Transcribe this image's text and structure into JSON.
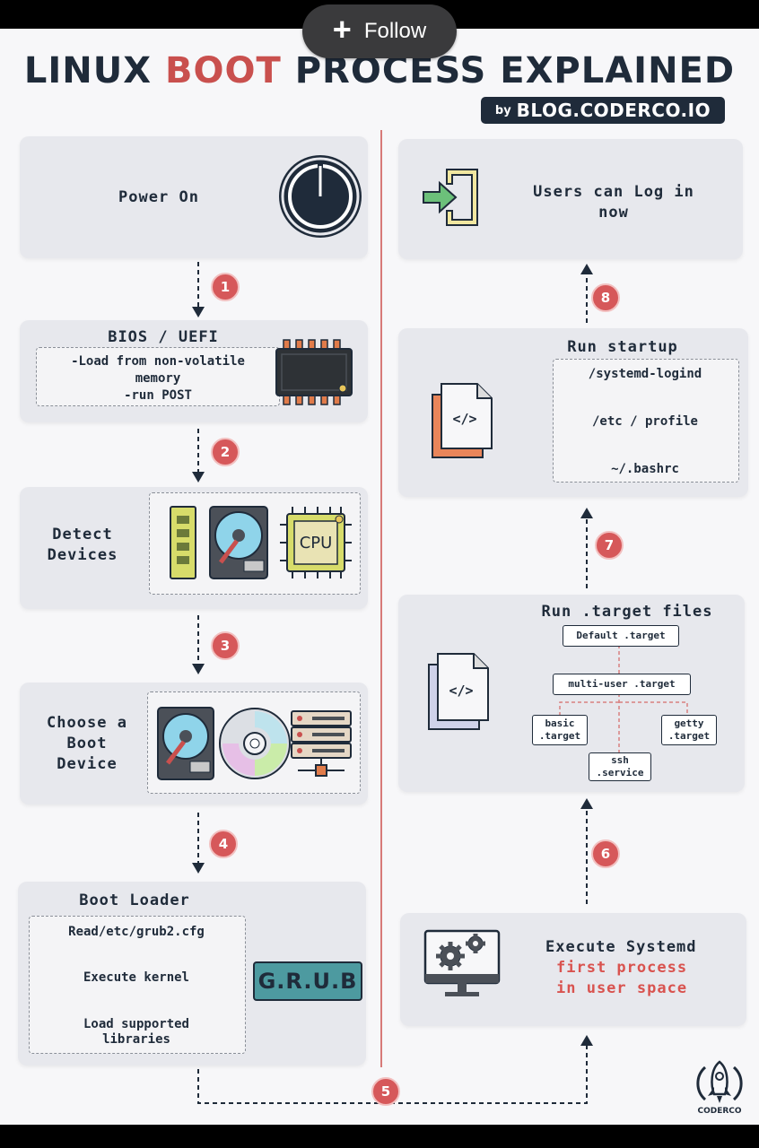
{
  "follow": {
    "label": "Follow"
  },
  "header": {
    "title_part1": "LINUX ",
    "title_highlight": "BOOT",
    "title_part2": " PROCESS EXPLAINED",
    "by": "by",
    "blog": "BLOG.CODERCO.IO"
  },
  "steps": {
    "power_on": {
      "label": "Power On"
    },
    "bios": {
      "title": "BIOS / UEFI",
      "line1": "-Load from non-volatile",
      "line2": "memory",
      "line3": "-run POST"
    },
    "detect": {
      "line1": "Detect",
      "line2": "Devices",
      "cpu": "CPU"
    },
    "choose": {
      "line1": "Choose a",
      "line2": "Boot",
      "line3": "Device"
    },
    "bootloader": {
      "title": "Boot Loader",
      "item1": "Read/etc/grub2.cfg",
      "item2": "Execute kernel",
      "item3_line1": "Load supported",
      "item3_line2": "libraries",
      "grub": "G.R.U.B"
    },
    "systemd": {
      "line1": "Execute Systemd",
      "line2": "first process",
      "line3": "in user space"
    },
    "target": {
      "title": "Run .target files",
      "default": "Default .target",
      "multi": "multi-user .target",
      "basic_1": "basic",
      "basic_2": ".target",
      "getty_1": "getty",
      "getty_2": ".target",
      "ssh_1": "ssh",
      "ssh_2": ".service"
    },
    "startup": {
      "title": "Run startup",
      "item1": "/systemd-logind",
      "item2": "/etc / profile",
      "item3": "~/.bashrc"
    },
    "login": {
      "line1": "Users can Log in",
      "line2": "now"
    }
  },
  "badges": [
    "1",
    "2",
    "3",
    "4",
    "5",
    "6",
    "7",
    "8"
  ],
  "brand": {
    "name": "CODERCO"
  },
  "colors": {
    "accent": "#c9504e",
    "dark": "#1f2b3a",
    "card": "#e7e8ed",
    "teal": "#4d9aa0",
    "green": "#6cc07a",
    "yellow": "#e8e08a"
  }
}
